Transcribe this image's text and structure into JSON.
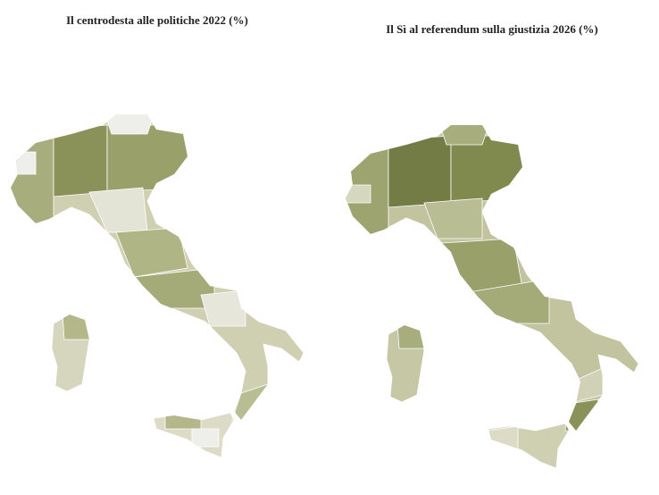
{
  "maps": [
    {
      "title": "Il centrodesta alle politiche 2022 (%)"
    },
    {
      "title": "Il Sì al referendum sulla giustizia 2026 (%)"
    }
  ]
}
